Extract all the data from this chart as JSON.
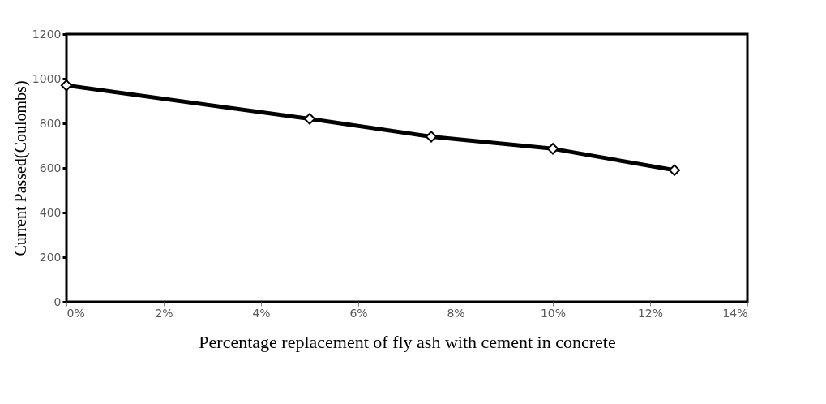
{
  "chart_data": {
    "type": "line",
    "xlabel": "Percentage replacement of fly ash with cement in concrete",
    "ylabel": "Current Passed(Coulombs)",
    "x": [
      0,
      5,
      7.5,
      10,
      12.5
    ],
    "series": [
      {
        "color": "#000000",
        "values": [
          970,
          820,
          740,
          686,
          590
        ]
      }
    ],
    "xlim": [
      0,
      14
    ],
    "xticks": [
      {
        "value": 0,
        "label": "0%"
      },
      {
        "value": 2,
        "label": "2%"
      },
      {
        "value": 4,
        "label": "4%"
      },
      {
        "value": 6,
        "label": "6%"
      },
      {
        "value": 8,
        "label": "8%"
      },
      {
        "value": 10,
        "label": "10%"
      },
      {
        "value": 12,
        "label": "12%"
      },
      {
        "value": 14,
        "label": "14%"
      }
    ],
    "ylim": [
      0,
      1200
    ],
    "yticks": [
      0,
      200,
      400,
      600,
      800,
      1000,
      1200
    ],
    "grid": false,
    "legend": false,
    "marker": "diamond",
    "line_style": "solid"
  }
}
